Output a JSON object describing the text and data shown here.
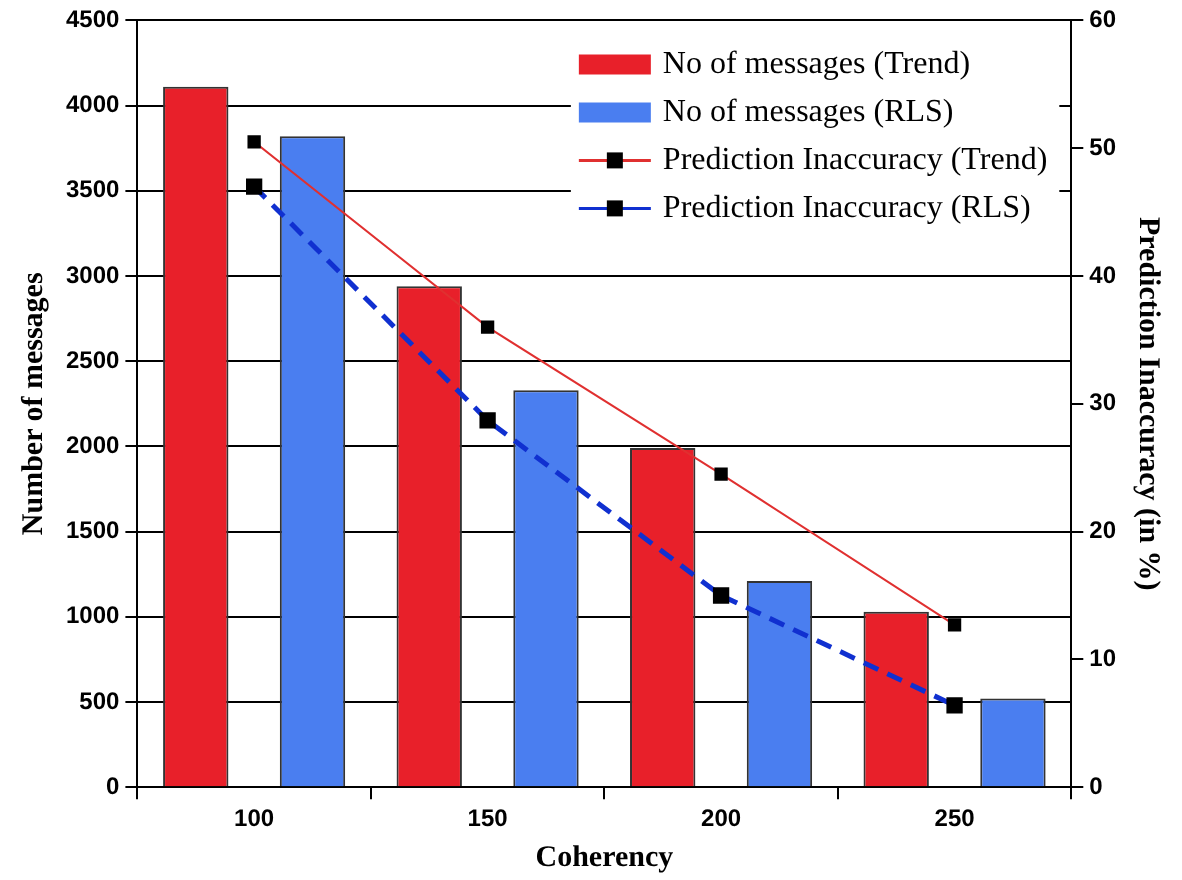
{
  "chart_data": {
    "type": "bar",
    "xlabel": "Coherency",
    "ylabel": "Number of messages",
    "y2label": "Prediction Inaccuracy (in %)",
    "categories": [
      "100",
      "150",
      "200",
      "250"
    ],
    "series": [
      {
        "name": "No of messages (Trend)",
        "color": "#e8202a",
        "values": [
          4110,
          2940,
          1990,
          1030
        ]
      },
      {
        "name": "No of messages (RLS)",
        "color": "#4a7ef0",
        "values": [
          3820,
          2330,
          1210,
          520
        ]
      },
      {
        "name": "Prediction Inaccuracy (Trend)",
        "type": "line",
        "axis": "y2",
        "color": "#e03030",
        "line_style": "solid",
        "values": [
          50.5,
          36,
          24.5,
          12.7
        ]
      },
      {
        "name": "Prediction Inaccuracy (RLS)",
        "type": "line",
        "axis": "y2",
        "color": "#1030d0",
        "line_style": "dashed",
        "values": [
          47,
          28.7,
          15,
          6.4
        ]
      }
    ],
    "ylim": [
      0,
      4500
    ],
    "yticks": [
      0,
      500,
      1000,
      1500,
      2000,
      2500,
      3000,
      3500,
      4000,
      4500
    ],
    "y2lim": [
      0,
      60
    ],
    "y2ticks": [
      0,
      10,
      20,
      30,
      40,
      50,
      60
    ],
    "grid": "y",
    "legend": "top right",
    "marker": "square"
  }
}
